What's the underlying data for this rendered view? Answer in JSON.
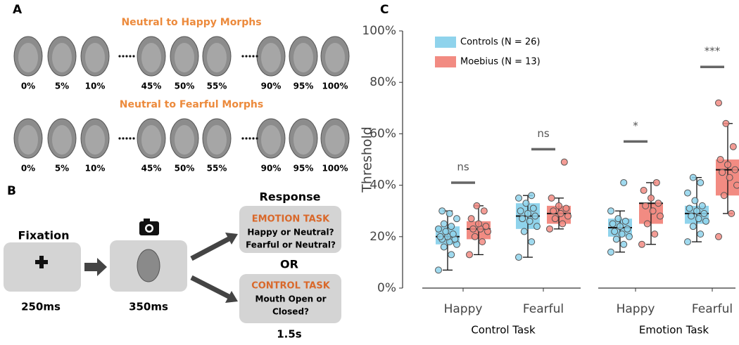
{
  "panel_a": {
    "letter": "A",
    "rows": [
      {
        "title": "Neutral to Happy Morphs",
        "labels": [
          "0%",
          "5%",
          "10%",
          "45%",
          "50%",
          "55%",
          "90%",
          "95%",
          "100%"
        ]
      },
      {
        "title": "Neutral to Fearful Morphs",
        "labels": [
          "0%",
          "5%",
          "10%",
          "45%",
          "50%",
          "55%",
          "90%",
          "95%",
          "100%"
        ]
      }
    ]
  },
  "panel_b": {
    "letter": "B",
    "fixation": "Fixation",
    "fixation_time": "250ms",
    "face_time": "350ms",
    "response": "Response",
    "emotion_task": {
      "title": "EMOTION TASK",
      "lines": [
        "Happy or Neutral?",
        "Fearful or Neutral?"
      ]
    },
    "or": "OR",
    "control_task": {
      "title": "CONTROL TASK",
      "lines": [
        "Mouth Open or",
        "Closed?"
      ]
    },
    "response_time": "1.5s"
  },
  "chart_data": {
    "type": "box",
    "letter": "C",
    "ylabel": "Threshold",
    "categories": [
      "Happy",
      "Fearful",
      "Happy",
      "Fearful"
    ],
    "groups": [
      "Control Task",
      "Emotion Task"
    ],
    "ylim": [
      0,
      100
    ],
    "yticks": [
      {
        "value": 0,
        "label": "0%"
      },
      {
        "value": 20,
        "label": "20%"
      },
      {
        "value": 40,
        "label": "40%"
      },
      {
        "value": 60,
        "label": "60%"
      },
      {
        "value": 80,
        "label": "80%"
      },
      {
        "value": 100,
        "label": "100%"
      }
    ],
    "legend": "upper left",
    "series": [
      {
        "name": "Controls (N = 26)",
        "color": "#8fd3ec",
        "values": [
          {
            "min": 7,
            "q1": 17,
            "median": 20,
            "q3": 24,
            "max": 30,
            "points": [
              7,
              13,
              16,
              17,
              18,
              19,
              19,
              20,
              20,
              21,
              22,
              23,
              24,
              25,
              27,
              29,
              30
            ]
          },
          {
            "min": 12,
            "q1": 23,
            "median": 28,
            "q3": 33,
            "max": 36,
            "points": [
              12,
              18,
              22,
              24,
              26,
              27,
              28,
              29,
              30,
              31,
              33,
              35,
              36
            ]
          },
          {
            "min": 14,
            "q1": 20,
            "median": 23.5,
            "q3": 27,
            "max": 30,
            "points": [
              14,
              17,
              19,
              20,
              21,
              22,
              23,
              24,
              25,
              26,
              27,
              30,
              41
            ]
          },
          {
            "min": 18,
            "q1": 25,
            "median": 29,
            "q3": 32,
            "max": 43,
            "points": [
              18,
              21,
              24,
              26,
              27,
              28,
              29,
              30,
              31,
              32,
              34,
              37,
              41,
              43
            ]
          }
        ]
      },
      {
        "name": "Moebius (N = 13)",
        "color": "#f28b82",
        "values": [
          {
            "min": 13,
            "q1": 19,
            "median": 23,
            "q3": 26,
            "max": 32,
            "points": [
              13,
              18,
              20,
              22,
              23,
              23,
              24,
              25,
              27,
              30,
              32
            ]
          },
          {
            "min": 23,
            "q1": 25,
            "median": 29,
            "q3": 32,
            "max": 35,
            "points": [
              23,
              25,
              27,
              28,
              29,
              30,
              31,
              32,
              35,
              49
            ]
          },
          {
            "min": 17,
            "q1": 25,
            "median": 33,
            "q3": 33,
            "max": 41,
            "points": [
              17,
              21,
              25,
              28,
              30,
              32,
              33,
              35,
              38,
              41
            ]
          },
          {
            "min": 29,
            "q1": 36,
            "median": 46,
            "q3": 50,
            "max": 64,
            "points": [
              20,
              29,
              36,
              40,
              43,
              45,
              46,
              48,
              50,
              55,
              64,
              72
            ]
          }
        ]
      }
    ],
    "significance": [
      {
        "label": "ns",
        "value": 41
      },
      {
        "label": "ns",
        "value": 54
      },
      {
        "label": "*",
        "value": 57
      },
      {
        "label": "***",
        "value": 86
      }
    ]
  }
}
